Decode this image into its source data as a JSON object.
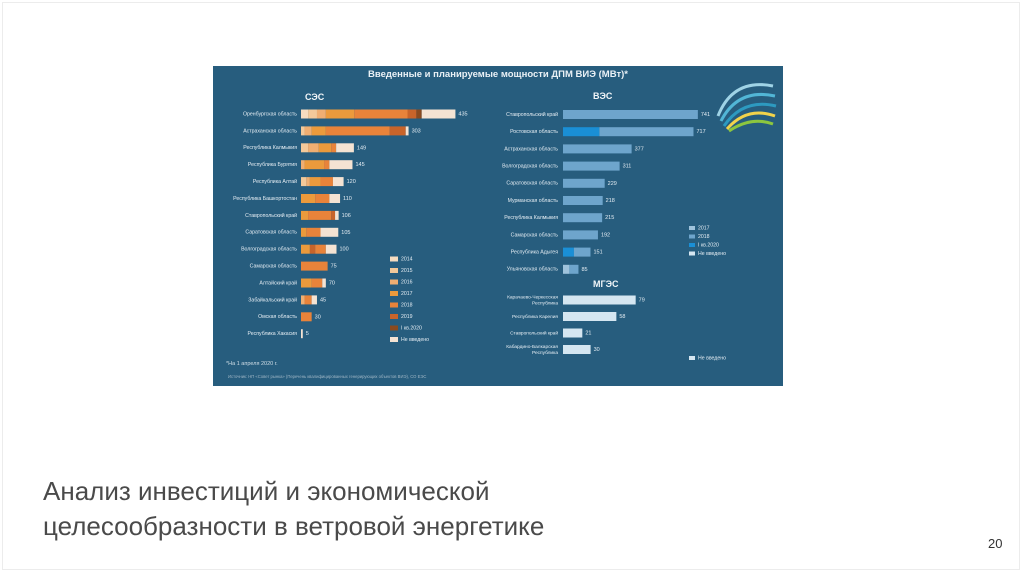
{
  "slide": {
    "caption_line1": "Анализ инвестиций и экономической",
    "caption_line2": "целесообразности в ветровой энергетике",
    "page_number": "20"
  },
  "colors": {
    "background": "#275d7e",
    "ses": {
      "2014": "#f6dcc0",
      "2015": "#f3c99a",
      "2016": "#efae72",
      "2017": "#eb9a3c",
      "2018": "#e8833a",
      "2019": "#c8642a",
      "I кв.2020": "#8a4a1f",
      "Не введено": "#f4e3d3"
    },
    "wind": {
      "2017": "#9fc3dc",
      "2018": "#6ea5cc",
      "I кв.2020": "#1a8fd6",
      "Не введено": "#d5e6f1"
    },
    "hydro": {
      "Не введено": "#d5e6f1"
    }
  },
  "chart_data": [
    {
      "type": "bar",
      "title": "СЭС",
      "orientation": "horizontal",
      "stacked": true,
      "categories": [
        "Оренбургская область",
        "Астраханская область",
        "Республика Калмыкия",
        "Республика Бурятия",
        "Республика Алтай",
        "Республика Башкортостан",
        "Ставропольский край",
        "Саратовская область",
        "Волгоградская область",
        "Самарская область",
        "Алтайский край",
        "Забайкальский край",
        "Омская область",
        "Республика Хакасия"
      ],
      "totals": [
        435,
        303,
        149,
        145,
        120,
        110,
        106,
        105,
        100,
        75,
        70,
        45,
        30,
        5
      ],
      "legend": [
        "2014",
        "2015",
        "2016",
        "2017",
        "2018",
        "2019",
        "I кв.2020",
        "Не введено"
      ],
      "segments": [
        [
          [
            "2014",
            20
          ],
          [
            "2015",
            25
          ],
          [
            "2016",
            25
          ],
          [
            "2017",
            80
          ],
          [
            "2018",
            150
          ],
          [
            "2019",
            25
          ],
          [
            "I кв.2020",
            15
          ],
          [
            "Не введено",
            95
          ]
        ],
        [
          [
            "2015",
            10
          ],
          [
            "2016",
            20
          ],
          [
            "2017",
            40
          ],
          [
            "2018",
            180
          ],
          [
            "2019",
            45
          ],
          [
            "Не введено",
            8
          ]
        ],
        [
          [
            "2015",
            20
          ],
          [
            "2016",
            30
          ],
          [
            "2017",
            35
          ],
          [
            "2018",
            14
          ],
          [
            "Не введено",
            50
          ]
        ],
        [
          [
            "2016",
            10
          ],
          [
            "2017",
            55
          ],
          [
            "2018",
            15
          ],
          [
            "Не введено",
            65
          ]
        ],
        [
          [
            "2015",
            15
          ],
          [
            "2016",
            10
          ],
          [
            "2017",
            30
          ],
          [
            "2018",
            35
          ],
          [
            "Не введено",
            30
          ]
        ],
        [
          [
            "2017",
            40
          ],
          [
            "2018",
            40
          ],
          [
            "Не введено",
            30
          ]
        ],
        [
          [
            "2017",
            20
          ],
          [
            "2018",
            65
          ],
          [
            "2019",
            11
          ],
          [
            "Не введено",
            10
          ]
        ],
        [
          [
            "2017",
            15
          ],
          [
            "2018",
            40
          ],
          [
            "Не введено",
            50
          ]
        ],
        [
          [
            "2017",
            25
          ],
          [
            "2019",
            15
          ],
          [
            "2018",
            30
          ],
          [
            "Не введено",
            30
          ]
        ],
        [
          [
            "2018",
            75
          ]
        ],
        [
          [
            "2017",
            30
          ],
          [
            "2018",
            30
          ],
          [
            "Не введено",
            10
          ]
        ],
        [
          [
            "2016",
            10
          ],
          [
            "2018",
            20
          ],
          [
            "Не введено",
            15
          ]
        ],
        [
          [
            "2018",
            30
          ]
        ],
        [
          [
            "Не введено",
            5
          ]
        ]
      ]
    },
    {
      "type": "bar",
      "title": "ВЭС",
      "orientation": "horizontal",
      "stacked": true,
      "categories": [
        "Ставропольский край",
        "Ростовская область",
        "Астраханская область",
        "Волгоградская область",
        "Саратовская область",
        "Мурманская область",
        "Республика Калмыкия",
        "Самарская область",
        "Республика Адыгея",
        "Ульяновская область"
      ],
      "totals": [
        741,
        717,
        377,
        311,
        229,
        218,
        215,
        192,
        151,
        85
      ],
      "legend": [
        "2017",
        "2018",
        "I кв.2020",
        "Не введено"
      ],
      "segments": [
        [
          [
            "2018",
            741
          ]
        ],
        [
          [
            "I кв.2020",
            200
          ],
          [
            "2018",
            517
          ]
        ],
        [
          [
            "2018",
            377
          ]
        ],
        [
          [
            "2018",
            311
          ]
        ],
        [
          [
            "2018",
            229
          ]
        ],
        [
          [
            "2018",
            218
          ]
        ],
        [
          [
            "2018",
            215
          ]
        ],
        [
          [
            "2018",
            192
          ]
        ],
        [
          [
            "I кв.2020",
            60
          ],
          [
            "2018",
            91
          ]
        ],
        [
          [
            "2017",
            35
          ],
          [
            "2018",
            50
          ]
        ]
      ]
    },
    {
      "type": "bar",
      "title": "МГЭС",
      "orientation": "horizontal",
      "stacked": false,
      "categories": [
        "Карачаево-Черкесская Республика",
        "Республика Карелия",
        "Ставропольский край",
        "Кабардино-Балкарская Республика"
      ],
      "totals": [
        79,
        58,
        21,
        30
      ],
      "legend": [
        "Не введено"
      ],
      "segments": [
        [
          [
            "Не введено",
            79
          ]
        ],
        [
          [
            "Не введено",
            58
          ]
        ],
        [
          [
            "Не введено",
            21
          ]
        ],
        [
          [
            "Не введено",
            30
          ]
        ]
      ]
    }
  ],
  "infographic": {
    "title": "Введенные и планируемые мощности ДПМ ВИЭ (МВт)*",
    "footnote": "*На 1 апреля 2020 г.",
    "source": "Источник: НП «Совет рынка» (Перечень квалифицированных генерирующих объектов ВИЭ), СО ЕЭС"
  }
}
